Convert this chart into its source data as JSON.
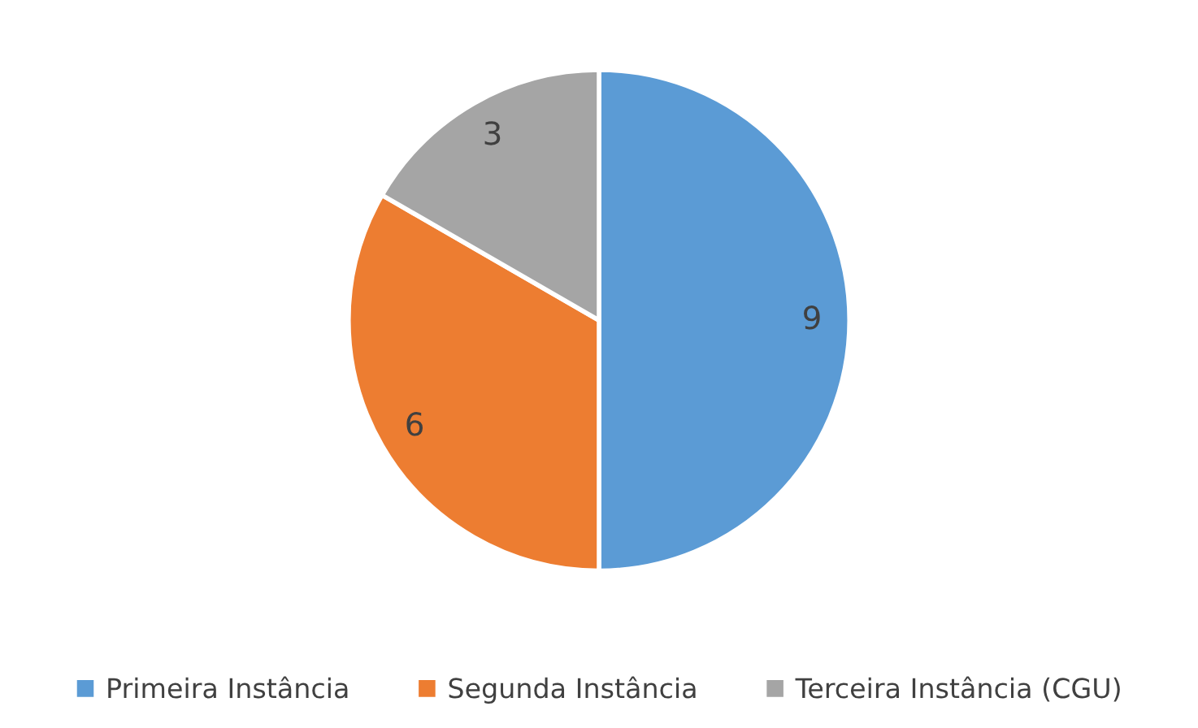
{
  "chart_data": {
    "type": "pie",
    "categories": [
      "Primeira Instância",
      "Segunda Instância",
      "Terceira Instância (CGU)"
    ],
    "values": [
      9,
      6,
      3
    ],
    "colors": [
      "#5b9bd5",
      "#ed7d31",
      "#a5a5a5"
    ],
    "data_labels": true,
    "legend": "bottom"
  }
}
